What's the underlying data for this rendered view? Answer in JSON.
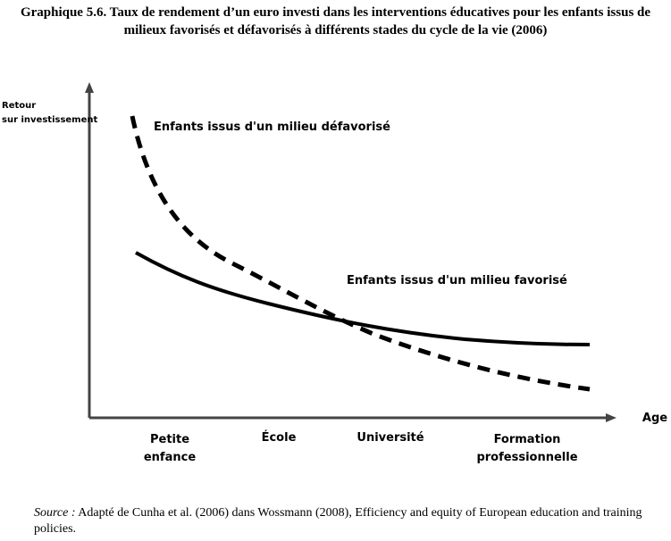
{
  "header": {
    "title": "Graphique 5.6. Taux de rendement d’un euro investi dans les interventions éducatives pour les enfants issus de milieux favorisés et défavorisés à différents stades du cycle de la vie (2006)"
  },
  "axes": {
    "y_label": "Retour sur investissement",
    "x_label": "Age"
  },
  "stages": [
    "Petite enfance",
    "École",
    "Université",
    "Formation professionnelle"
  ],
  "curves": {
    "disadvantaged": "Enfants issus d'un milieu défavorisé",
    "advantaged": "Enfants issus d'un milieu favorisé"
  },
  "source": {
    "label": "Source :",
    "text": "Adapté de Cunha et al. (2006) dans Wossmann (2008), Efficiency and equity of European education and training policies."
  }
}
